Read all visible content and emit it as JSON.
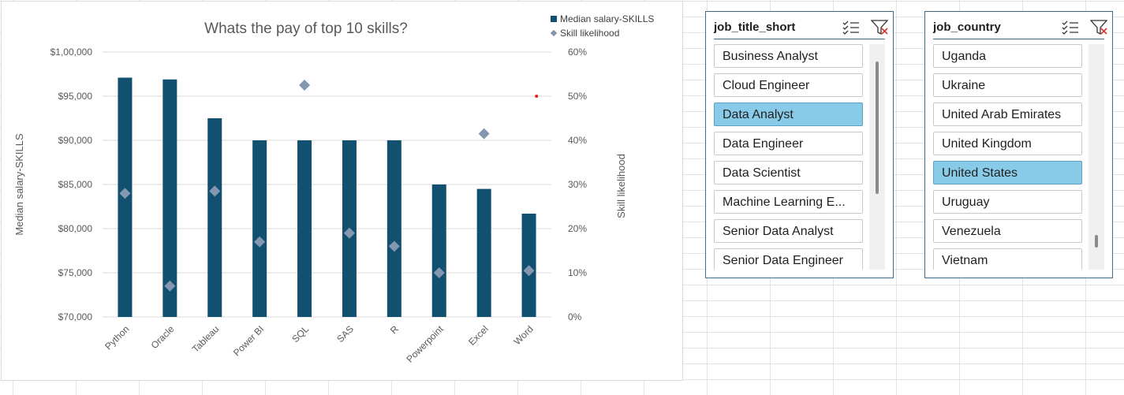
{
  "chart_data": {
    "type": "bar",
    "title": "Whats the pay of top 10 skills?",
    "categories": [
      "Python",
      "Oracle",
      "Tableau",
      "Power BI",
      "SQL",
      "SAS",
      "R",
      "Powerpoint",
      "Excel",
      "Word"
    ],
    "series": [
      {
        "name": "Median salary-SKILLS",
        "type": "bar",
        "axis": "left",
        "color": "#12506f",
        "values": [
          97100,
          96900,
          92500,
          90000,
          90000,
          90000,
          90000,
          85000,
          84500,
          81700
        ]
      },
      {
        "name": "Skill likelihood",
        "type": "scatter",
        "axis": "right",
        "color": "#8497b0",
        "marker": "diamond",
        "values": [
          0.28,
          0.07,
          0.285,
          0.17,
          0.525,
          0.19,
          0.16,
          0.1,
          0.415,
          0.105
        ]
      }
    ],
    "ylabel": "Median salary-SKILLS",
    "y2label": "Skill likelihood",
    "ylim": [
      70000,
      100000
    ],
    "y2lim": [
      0,
      0.6
    ],
    "y_ticks": [
      "$70,000",
      "$75,000",
      "$80,000",
      "$85,000",
      "$90,000",
      "$95,000",
      "$1,00,000"
    ],
    "y2_ticks": [
      "0%",
      "10%",
      "20%",
      "30%",
      "40%",
      "50%",
      "60%"
    ],
    "legend_position": "top-right",
    "grid": true,
    "stray_point": {
      "category_index": 10.17,
      "value": 95000,
      "color": "#e0201c"
    }
  },
  "slicers": [
    {
      "title": "job_title_short",
      "items": [
        {
          "label": "Business Analyst",
          "selected": false
        },
        {
          "label": "Cloud Engineer",
          "selected": false
        },
        {
          "label": "Data Analyst",
          "selected": true
        },
        {
          "label": "Data Engineer",
          "selected": false
        },
        {
          "label": "Data Scientist",
          "selected": false
        },
        {
          "label": "Machine Learning E...",
          "selected": false
        },
        {
          "label": "Senior Data Analyst",
          "selected": false
        },
        {
          "label": "Senior Data Engineer",
          "selected": false
        }
      ],
      "icons": [
        "multi-select-icon",
        "clear-filter-icon"
      ]
    },
    {
      "title": "job_country",
      "items": [
        {
          "label": "Uganda",
          "selected": false
        },
        {
          "label": "Ukraine",
          "selected": false
        },
        {
          "label": "United Arab Emirates",
          "selected": false
        },
        {
          "label": "United Kingdom",
          "selected": false
        },
        {
          "label": "United States",
          "selected": true
        },
        {
          "label": "Uruguay",
          "selected": false
        },
        {
          "label": "Venezuela",
          "selected": false
        },
        {
          "label": "Vietnam",
          "selected": false
        }
      ],
      "icons": [
        "multi-select-icon",
        "clear-filter-icon"
      ]
    }
  ]
}
